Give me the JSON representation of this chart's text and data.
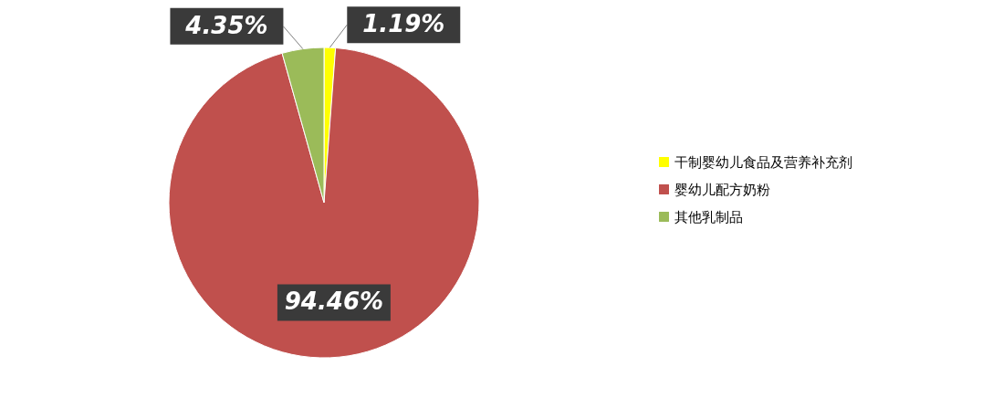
{
  "chart_data": {
    "type": "pie",
    "categories": [
      "干制婴幼儿食品及营养补充剂",
      "婴幼儿配方奶粉",
      "其他乳制品"
    ],
    "values": [
      1.19,
      94.46,
      4.35
    ],
    "colors": [
      "#ffff00",
      "#c0504d",
      "#9bbb59"
    ],
    "value_labels": [
      "1.19%",
      "94.46%",
      "4.35%"
    ],
    "legend": "right"
  }
}
